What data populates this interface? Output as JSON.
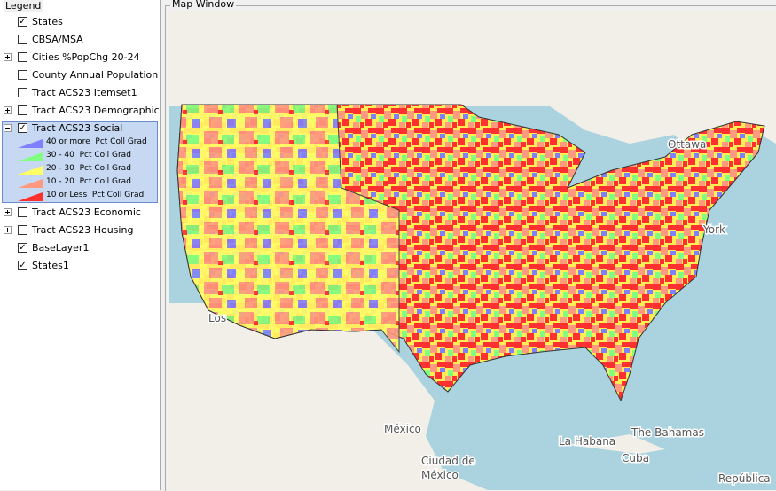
{
  "legend": {
    "title": "Legend",
    "layers": [
      {
        "name": "States",
        "checked": true
      },
      {
        "name": "CBSA/MSA",
        "checked": false
      },
      {
        "name": "Cities %PopChg 20-24",
        "checked": false,
        "expander": "collapsed"
      },
      {
        "name": "County Annual Population",
        "checked": false
      },
      {
        "name": "Tract ACS23 Itemset1",
        "checked": false
      },
      {
        "name": "Tract ACS23 Demographic",
        "checked": false,
        "expander": "collapsed"
      },
      {
        "name": "Tract ACS23 Social",
        "checked": true,
        "expander": "expanded",
        "selected": true,
        "classes": [
          {
            "label": "40 or more  Pct Coll Grad",
            "color": "#8080ff"
          },
          {
            "label": "30 - 40  Pct Coll Grad",
            "color": "#80ff80"
          },
          {
            "label": "20 - 30  Pct Coll Grad",
            "color": "#ffff66"
          },
          {
            "label": "10 - 20  Pct Coll Grad",
            "color": "#ff9a80"
          },
          {
            "label": "10 or Less  Pct Coll Grad",
            "color": "#ff3030"
          }
        ]
      },
      {
        "name": "Tract ACS23 Economic",
        "checked": false,
        "expander": "collapsed"
      },
      {
        "name": "Tract ACS23 Housing",
        "checked": false,
        "expander": "collapsed"
      },
      {
        "name": "BaseLayer1",
        "checked": true
      },
      {
        "name": "States1",
        "checked": true
      }
    ]
  },
  "map": {
    "title": "Map Window",
    "places": [
      "Ottawa",
      "York",
      "Los",
      "México",
      "La Habana",
      "The Bahamas",
      "Cuba",
      "Ciudad de",
      "México",
      "República"
    ]
  }
}
